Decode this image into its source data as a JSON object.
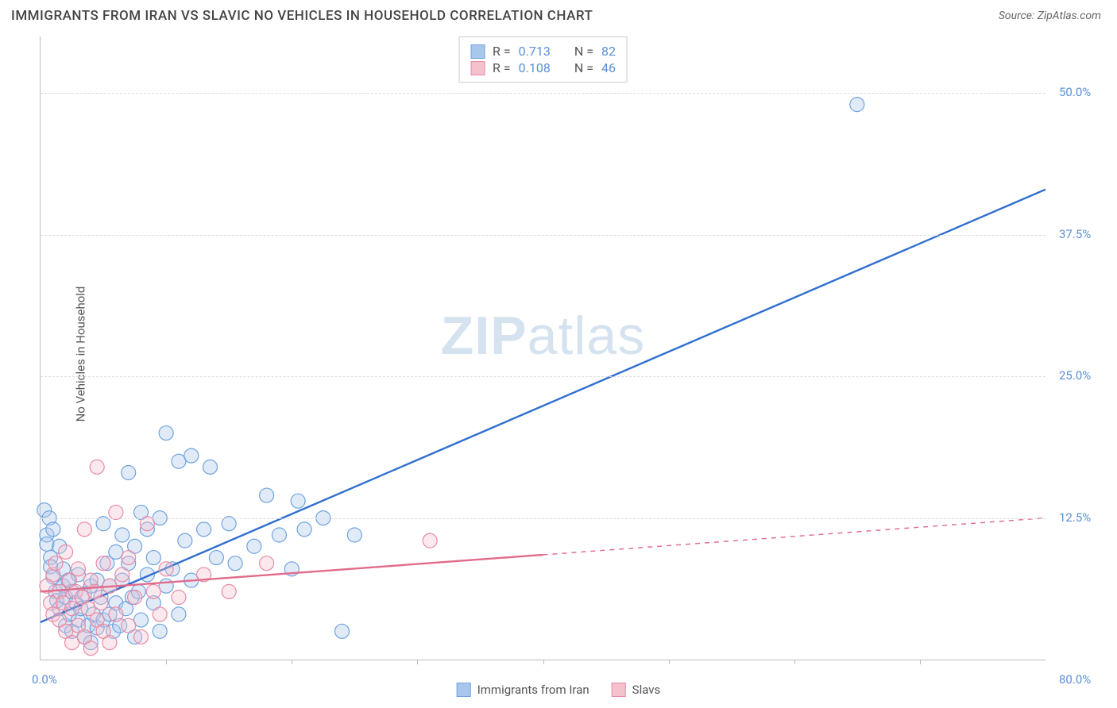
{
  "header": {
    "title": "IMMIGRANTS FROM IRAN VS SLAVIC NO VEHICLES IN HOUSEHOLD CORRELATION CHART",
    "source_prefix": "Source: ",
    "source_name": "ZipAtlas.com"
  },
  "watermark": {
    "zip": "ZIP",
    "atlas": "atlas"
  },
  "chart": {
    "type": "scatter-with-regression",
    "xlim": [
      0,
      80
    ],
    "ylim": [
      0,
      55
    ],
    "x_min_label": "0.0%",
    "x_max_label": "80.0%",
    "y_ticks": [
      {
        "value": 12.5,
        "label": "12.5%"
      },
      {
        "value": 25.0,
        "label": "25.0%"
      },
      {
        "value": 37.5,
        "label": "37.5%"
      },
      {
        "value": 50.0,
        "label": "50.0%"
      }
    ],
    "x_tick_positions": [
      10,
      20,
      30,
      40,
      50,
      60,
      70
    ],
    "ylabel": "No Vehicles in Household",
    "marker_radius": 9,
    "marker_stroke_width": 1.2,
    "marker_fill_opacity": 0.35,
    "line_width": 2.4,
    "background_color": "#ffffff",
    "grid_color": "#dddddd",
    "axis_color": "#bbbbbb",
    "tick_label_color": "#5b8fd6",
    "axis_label_color": "#555555",
    "series": [
      {
        "key": "iran",
        "label": "Immigrants from Iran",
        "color_fill": "#a9c7ec",
        "color_stroke": "#6fa3de",
        "line_color": "#2f6fd0",
        "r_value": "0.713",
        "n_value": "82",
        "regression": {
          "x1": 0,
          "y1": 3.3,
          "x2": 80,
          "y2": 41.5,
          "dashed_from_x": null
        },
        "points": [
          [
            0.3,
            13.2
          ],
          [
            0.5,
            11.0
          ],
          [
            0.5,
            10.2
          ],
          [
            0.7,
            12.5
          ],
          [
            0.8,
            9.0
          ],
          [
            0.8,
            8.2
          ],
          [
            1.0,
            7.3
          ],
          [
            1.0,
            11.5
          ],
          [
            1.2,
            6.0
          ],
          [
            1.3,
            5.2
          ],
          [
            1.5,
            10.0
          ],
          [
            1.5,
            4.5
          ],
          [
            1.8,
            6.5
          ],
          [
            1.8,
            8.0
          ],
          [
            2.0,
            3.0
          ],
          [
            2.0,
            5.5
          ],
          [
            2.2,
            7.0
          ],
          [
            2.3,
            4.0
          ],
          [
            2.5,
            6.0
          ],
          [
            2.5,
            2.5
          ],
          [
            2.8,
            5.0
          ],
          [
            3.0,
            3.5
          ],
          [
            3.0,
            7.5
          ],
          [
            3.2,
            4.5
          ],
          [
            3.5,
            2.0
          ],
          [
            3.5,
            5.8
          ],
          [
            3.8,
            3.0
          ],
          [
            4.0,
            6.5
          ],
          [
            4.0,
            1.5
          ],
          [
            4.2,
            4.0
          ],
          [
            4.5,
            7.0
          ],
          [
            4.5,
            2.8
          ],
          [
            4.8,
            5.5
          ],
          [
            5.0,
            12.0
          ],
          [
            5.0,
            3.5
          ],
          [
            5.3,
            8.5
          ],
          [
            5.5,
            4.0
          ],
          [
            5.5,
            6.5
          ],
          [
            5.8,
            2.5
          ],
          [
            6.0,
            9.5
          ],
          [
            6.0,
            5.0
          ],
          [
            6.3,
            3.0
          ],
          [
            6.5,
            11.0
          ],
          [
            6.5,
            7.0
          ],
          [
            6.8,
            4.5
          ],
          [
            7.0,
            16.5
          ],
          [
            7.0,
            8.5
          ],
          [
            7.3,
            5.5
          ],
          [
            7.5,
            2.0
          ],
          [
            7.5,
            10.0
          ],
          [
            7.8,
            6.0
          ],
          [
            8.0,
            13.0
          ],
          [
            8.0,
            3.5
          ],
          [
            8.5,
            7.5
          ],
          [
            8.5,
            11.5
          ],
          [
            9.0,
            5.0
          ],
          [
            9.0,
            9.0
          ],
          [
            9.5,
            2.5
          ],
          [
            9.5,
            12.5
          ],
          [
            10.0,
            20.0
          ],
          [
            10.0,
            6.5
          ],
          [
            10.5,
            8.0
          ],
          [
            11.0,
            17.5
          ],
          [
            11.0,
            4.0
          ],
          [
            11.5,
            10.5
          ],
          [
            12.0,
            18.0
          ],
          [
            12.0,
            7.0
          ],
          [
            13.0,
            11.5
          ],
          [
            13.5,
            17.0
          ],
          [
            14.0,
            9.0
          ],
          [
            15.0,
            12.0
          ],
          [
            15.5,
            8.5
          ],
          [
            17.0,
            10.0
          ],
          [
            18.0,
            14.5
          ],
          [
            19.0,
            11.0
          ],
          [
            20.0,
            8.0
          ],
          [
            20.5,
            14.0
          ],
          [
            21.0,
            11.5
          ],
          [
            22.5,
            12.5
          ],
          [
            24.0,
            2.5
          ],
          [
            25.0,
            11.0
          ],
          [
            65.0,
            49.0
          ]
        ]
      },
      {
        "key": "slavs",
        "label": "Slavs",
        "color_fill": "#f4c1cd",
        "color_stroke": "#e88ba5",
        "line_color": "#e26a8a",
        "r_value": "0.108",
        "n_value": "46",
        "regression": {
          "x1": 0,
          "y1": 6.0,
          "x2": 80,
          "y2": 12.5,
          "dashed_from_x": 40
        },
        "points": [
          [
            0.5,
            6.5
          ],
          [
            0.8,
            5.0
          ],
          [
            1.0,
            7.5
          ],
          [
            1.0,
            4.0
          ],
          [
            1.2,
            8.5
          ],
          [
            1.5,
            3.5
          ],
          [
            1.5,
            6.0
          ],
          [
            1.8,
            5.0
          ],
          [
            2.0,
            9.5
          ],
          [
            2.0,
            2.5
          ],
          [
            2.3,
            7.0
          ],
          [
            2.5,
            4.5
          ],
          [
            2.5,
            1.5
          ],
          [
            2.8,
            6.0
          ],
          [
            3.0,
            8.0
          ],
          [
            3.0,
            3.0
          ],
          [
            3.3,
            5.5
          ],
          [
            3.5,
            2.0
          ],
          [
            3.5,
            11.5
          ],
          [
            3.8,
            4.5
          ],
          [
            4.0,
            7.0
          ],
          [
            4.0,
            1.0
          ],
          [
            4.3,
            6.0
          ],
          [
            4.5,
            3.5
          ],
          [
            4.5,
            17.0
          ],
          [
            4.8,
            5.0
          ],
          [
            5.0,
            8.5
          ],
          [
            5.0,
            2.5
          ],
          [
            5.5,
            6.5
          ],
          [
            5.5,
            1.5
          ],
          [
            6.0,
            4.0
          ],
          [
            6.0,
            13.0
          ],
          [
            6.5,
            7.5
          ],
          [
            7.0,
            3.0
          ],
          [
            7.0,
            9.0
          ],
          [
            7.5,
            5.5
          ],
          [
            8.0,
            2.0
          ],
          [
            8.5,
            12.0
          ],
          [
            9.0,
            6.0
          ],
          [
            9.5,
            4.0
          ],
          [
            10.0,
            8.0
          ],
          [
            11.0,
            5.5
          ],
          [
            13.0,
            7.5
          ],
          [
            15.0,
            6.0
          ],
          [
            18.0,
            8.5
          ],
          [
            31.0,
            10.5
          ]
        ]
      }
    ]
  },
  "legend_top": {
    "r_label": "R =",
    "n_label": "N ="
  },
  "legend_bottom_swatch_size": 18
}
